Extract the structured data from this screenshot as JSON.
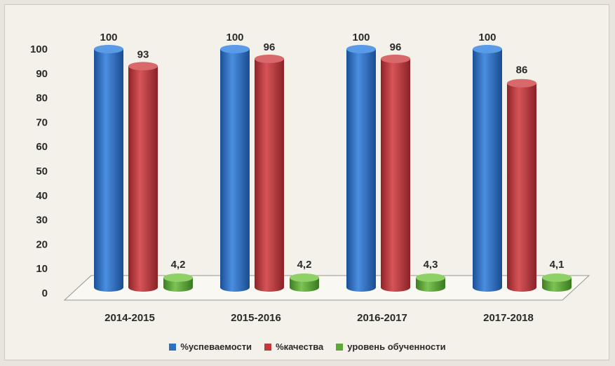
{
  "chart_data": {
    "type": "bar",
    "categories": [
      "2014-2015",
      "2015-2016",
      "2016-2017",
      "2017-2018"
    ],
    "series": [
      {
        "name": "%успеваемости",
        "values": [
          100,
          100,
          100,
          100
        ],
        "labels": [
          "100",
          "100",
          "100",
          "100"
        ],
        "color": "#2e6fc0"
      },
      {
        "name": "%качества",
        "values": [
          93,
          96,
          96,
          86
        ],
        "labels": [
          "93",
          "96",
          "96",
          "86"
        ],
        "color": "#c0383c"
      },
      {
        "name": "уровень обученности",
        "values": [
          4.2,
          4.2,
          4.3,
          4.1
        ],
        "labels": [
          "4,2",
          "4,2",
          "4,3",
          "4,1"
        ],
        "color": "#5ea83a"
      }
    ],
    "yticks": [
      "0",
      "10",
      "20",
      "30",
      "40",
      "50",
      "60",
      "70",
      "80",
      "90",
      "100"
    ],
    "ylim": [
      0,
      100
    ],
    "grid": false,
    "legend_position": "bottom",
    "style": "3d-cylinder"
  }
}
